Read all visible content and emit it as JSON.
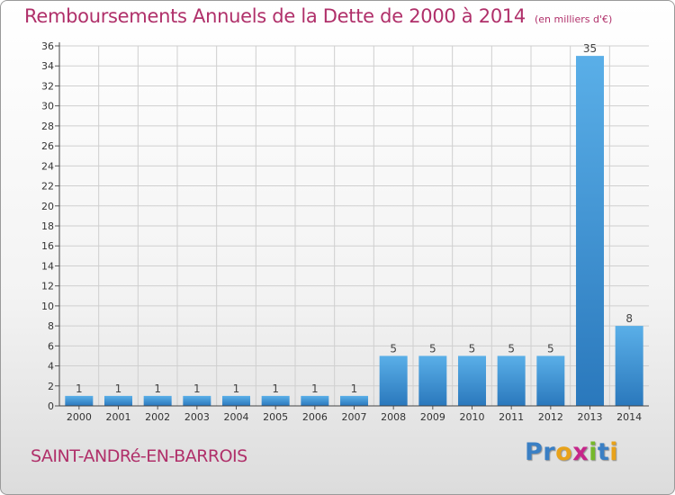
{
  "header": {
    "title": "Remboursements Annuels de la Dette de 2000 à 2014",
    "subtitle": "(en milliers d'€)"
  },
  "footer": {
    "commune": "SAINT-ANDRé-EN-BARROIS",
    "brand_letters": [
      {
        "char": "P",
        "color": "#3a7fc4"
      },
      {
        "char": "r",
        "color": "#3a7fc4"
      },
      {
        "char": "o",
        "color": "#e8a21a"
      },
      {
        "char": "x",
        "color": "#c6258a"
      },
      {
        "char": "i",
        "color": "#76b82a"
      },
      {
        "char": "t",
        "color": "#3a7fc4"
      },
      {
        "char": "i",
        "color": "#e8a21a"
      }
    ]
  },
  "colors": {
    "title": "#b0306a",
    "bar_top": "#5aafe8",
    "bar_bottom": "#2a78bc",
    "grid": "#cfcfcf"
  },
  "chart_data": {
    "type": "bar",
    "title": "Remboursements Annuels de la Dette de 2000 à 2014",
    "subtitle": "(en milliers d'€)",
    "xlabel": "",
    "ylabel": "",
    "categories": [
      "2000",
      "2001",
      "2002",
      "2003",
      "2004",
      "2005",
      "2006",
      "2007",
      "2008",
      "2009",
      "2010",
      "2011",
      "2012",
      "2013",
      "2014"
    ],
    "values": [
      1,
      1,
      1,
      1,
      1,
      1,
      1,
      1,
      5,
      5,
      5,
      5,
      5,
      35,
      8
    ],
    "ylim": [
      0,
      36
    ],
    "yticks": [
      0,
      2,
      4,
      6,
      8,
      10,
      12,
      14,
      16,
      18,
      20,
      22,
      24,
      26,
      28,
      30,
      32,
      34,
      36
    ],
    "grid": true,
    "legend": "none"
  }
}
